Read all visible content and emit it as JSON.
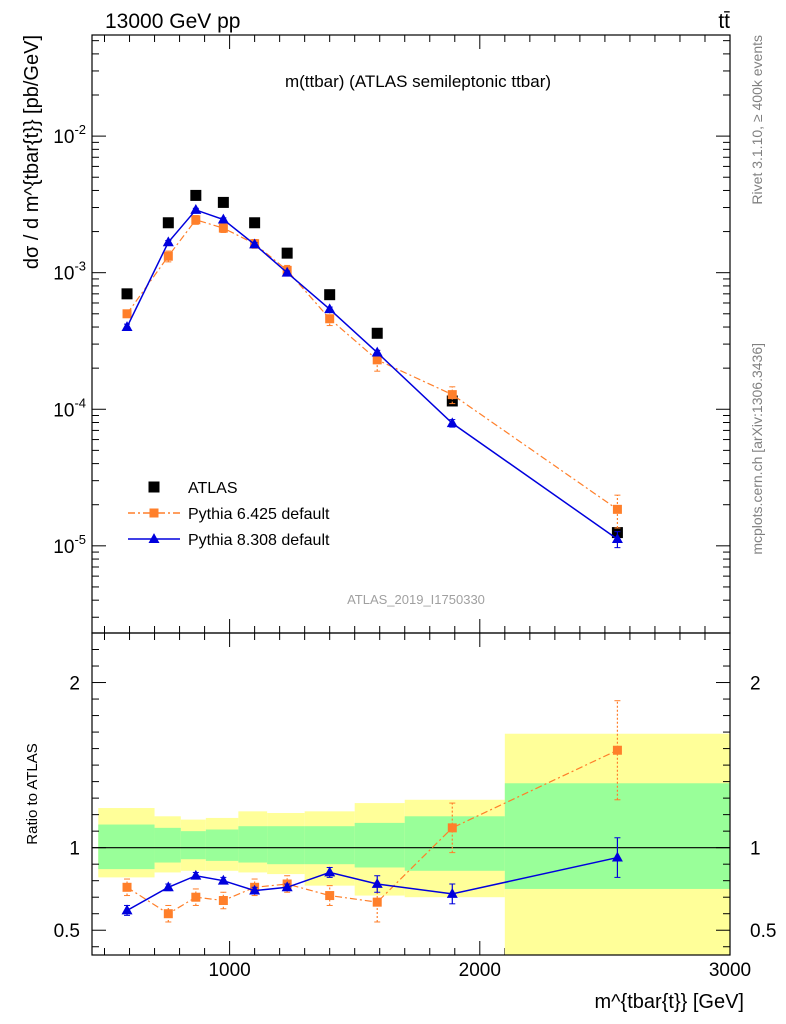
{
  "header": {
    "left": "13000 GeV pp",
    "right": "tt̄"
  },
  "side_labels": {
    "rivet": "Rivet 3.1.10, ≥ 400k events",
    "mcplots": "mcplots.cern.ch [arXiv:1306.3436]"
  },
  "chart_data": {
    "type": "scatter",
    "title": "m(ttbar) (ATLAS semileptonic ttbar)",
    "watermark": "ATLAS_2019_I1750330",
    "xlabel": "m^{tbar{t}} [GeV]",
    "xlim": [
      450,
      3000
    ],
    "x_ticks": [
      1000,
      2000,
      3000
    ],
    "x_tick_labels": [
      "1000",
      "2000",
      "3000"
    ],
    "main": {
      "ylabel": "dσ / d m^{tbar{t}} [pb/GeV]",
      "yscale": "log",
      "ylim": [
        2.3e-06,
        0.055
      ],
      "y_ticks": [
        1e-05,
        0.0001,
        0.001,
        0.01
      ],
      "y_tick_labels": [
        "10^-5",
        "10^-4",
        "10^-3",
        "10^-2"
      ],
      "legend_position": "bottom-left"
    },
    "ratio": {
      "ylabel": "Ratio to ATLAS",
      "ylim": [
        0.35,
        2.3
      ],
      "y_ticks": [
        0.5,
        1,
        2
      ],
      "y_tick_labels": [
        "0.5",
        "1",
        "2"
      ]
    },
    "bins": {
      "edges": [
        475,
        700,
        805,
        905,
        1035,
        1150,
        1300,
        1500,
        1700,
        2100,
        3000
      ],
      "green_ratio_band": [
        [
          0.87,
          1.14
        ],
        [
          0.91,
          1.12
        ],
        [
          0.93,
          1.1
        ],
        [
          0.92,
          1.11
        ],
        [
          0.91,
          1.13
        ],
        [
          0.9,
          1.13
        ],
        [
          0.9,
          1.13
        ],
        [
          0.88,
          1.15
        ],
        [
          0.86,
          1.19
        ],
        [
          0.75,
          1.39
        ]
      ],
      "yellow_ratio_band": [
        [
          0.82,
          1.24
        ],
        [
          0.85,
          1.19
        ],
        [
          0.86,
          1.17
        ],
        [
          0.86,
          1.18
        ],
        [
          0.85,
          1.22
        ],
        [
          0.84,
          1.21
        ],
        [
          0.77,
          1.22
        ],
        [
          0.71,
          1.27
        ],
        [
          0.7,
          1.29
        ],
        [
          0.35,
          1.69
        ]
      ]
    },
    "series": [
      {
        "name": "ATLAS",
        "color": "#000000",
        "marker": "square",
        "line": "none",
        "x": [
          590,
          755,
          865,
          975,
          1100,
          1230,
          1400,
          1590,
          1890,
          2550
        ],
        "y": [
          0.0007,
          0.00232,
          0.00368,
          0.00327,
          0.00232,
          0.00139,
          0.00069,
          0.00036,
          0.000115,
          1.25e-05
        ],
        "ratio": [
          1,
          1,
          1,
          1,
          1,
          1,
          1,
          1,
          1,
          1
        ]
      },
      {
        "name": "Pythia 6.425 default",
        "color": "#ff7f2a",
        "marker": "square",
        "line": "dashdot",
        "x": [
          590,
          755,
          865,
          975,
          1100,
          1230,
          1400,
          1590,
          1890,
          2550
        ],
        "y": [
          0.0005,
          0.00132,
          0.00244,
          0.00212,
          0.00163,
          0.00104,
          0.00046,
          0.00023,
          0.000128,
          1.85e-05
        ],
        "y_err": [
          3e-05,
          0.00012,
          0.00018,
          0.00015,
          0.00012,
          9e-05,
          5e-05,
          4e-05,
          1.8e-05,
          5e-06
        ],
        "ratio": [
          0.76,
          0.6,
          0.7,
          0.68,
          0.76,
          0.78,
          0.71,
          0.67,
          1.12,
          1.59
        ],
        "ratio_err": [
          0.05,
          0.05,
          0.05,
          0.05,
          0.05,
          0.05,
          0.06,
          0.12,
          0.15,
          0.3
        ]
      },
      {
        "name": "Pythia 8.308 default",
        "color": "#0000dd",
        "marker": "triangle",
        "line": "solid",
        "x": [
          590,
          755,
          865,
          975,
          1100,
          1230,
          1400,
          1590,
          1890,
          2550
        ],
        "y": [
          0.0004,
          0.00167,
          0.00288,
          0.00245,
          0.00161,
          0.001,
          0.00054,
          0.00026,
          7.9e-05,
          1.12e-05
        ],
        "y_err": [
          2e-05,
          5e-05,
          8e-05,
          7e-05,
          5e-05,
          3e-05,
          2e-05,
          1e-05,
          5e-06,
          1.5e-06
        ],
        "ratio": [
          0.62,
          0.76,
          0.83,
          0.8,
          0.74,
          0.76,
          0.85,
          0.78,
          0.72,
          0.94
        ],
        "ratio_err": [
          0.03,
          0.02,
          0.02,
          0.02,
          0.02,
          0.02,
          0.03,
          0.05,
          0.06,
          0.12
        ]
      }
    ]
  }
}
